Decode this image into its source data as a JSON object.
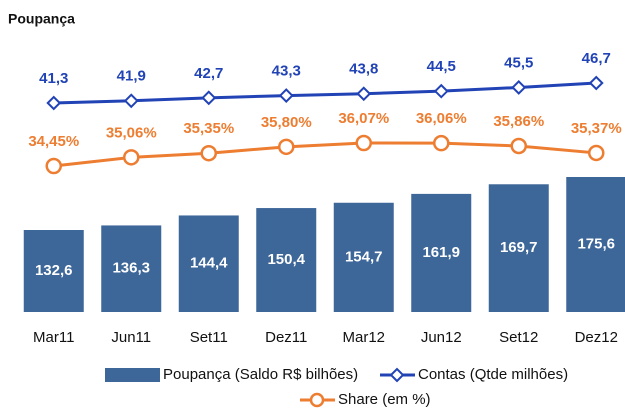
{
  "chart_data": {
    "type": "bar",
    "title": "Poupança",
    "categories": [
      "Mar11",
      "Jun11",
      "Set11",
      "Dez11",
      "Mar12",
      "Jun12",
      "Set12",
      "Dez12"
    ],
    "series": [
      {
        "name": "Poupança (Saldo R$ bilhões)",
        "type": "bar",
        "color": "#3d6699",
        "values": [
          132.6,
          136.3,
          144.4,
          150.4,
          154.7,
          161.9,
          169.7,
          175.6
        ],
        "value_labels": [
          "132,6",
          "136,3",
          "144,4",
          "150,4",
          "154,7",
          "161,9",
          "169,7",
          "175,6"
        ]
      },
      {
        "name": "Contas (Qtde milhões)",
        "type": "line",
        "marker": "diamond",
        "color": "#2143b5",
        "values": [
          41.3,
          41.9,
          42.7,
          43.3,
          43.8,
          44.5,
          45.5,
          46.7
        ],
        "value_labels": [
          "41,3",
          "41,9",
          "42,7",
          "43,3",
          "43,8",
          "44,5",
          "45,5",
          "46,7"
        ]
      },
      {
        "name": "Share (em %)",
        "type": "line",
        "marker": "circle",
        "color": "#ed7d31",
        "values": [
          34.45,
          35.06,
          35.35,
          35.8,
          36.07,
          36.06,
          35.86,
          35.37
        ],
        "value_labels": [
          "34,45%",
          "35,06%",
          "35,35%",
          "35,80%",
          "36,07%",
          "36,06%",
          "35,86%",
          "35,37%"
        ]
      }
    ]
  }
}
